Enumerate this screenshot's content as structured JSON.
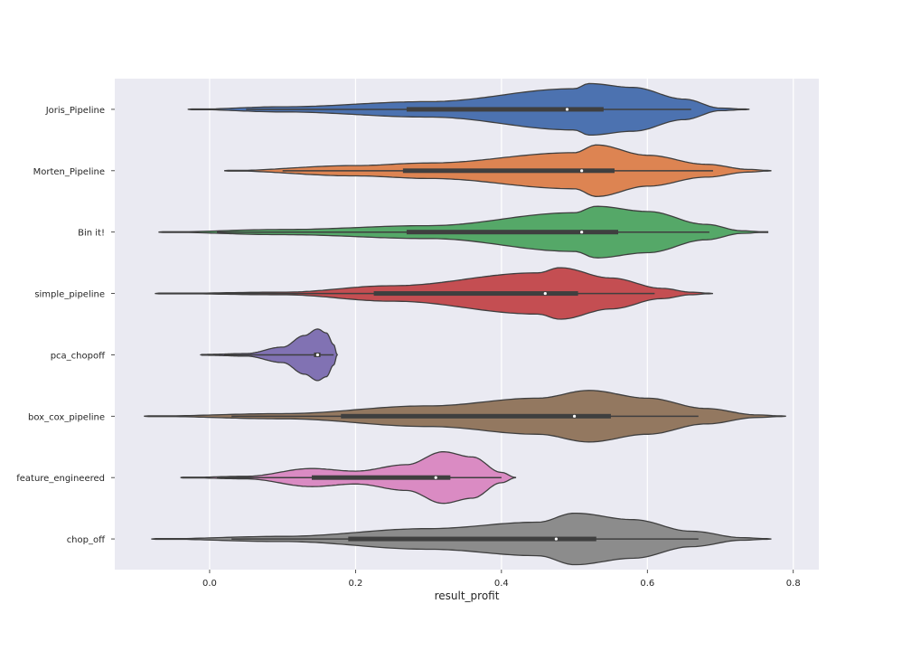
{
  "chart_data": {
    "type": "violin",
    "orientation": "horizontal",
    "title": "",
    "xlabel": "result_profit",
    "ylabel": "",
    "xlim": [
      -0.13,
      0.835
    ],
    "xticks": [
      0.0,
      0.2,
      0.4,
      0.6,
      0.8
    ],
    "xtick_labels": [
      "0.0",
      "0.2",
      "0.4",
      "0.6",
      "0.8"
    ],
    "grid": true,
    "background": "#eaeaf2",
    "categories": [
      "Joris_Pipeline",
      "Morten_Pipeline",
      "Bin it!",
      "simple_pipeline",
      "pca_chopoff",
      "box_cox_pipeline",
      "feature_engineered",
      "chop_off"
    ],
    "series": [
      {
        "category": "Joris_Pipeline",
        "color": "#4c72b0",
        "range": [
          -0.03,
          0.74
        ],
        "whisker": [
          0.05,
          0.66
        ],
        "q1": 0.27,
        "median": 0.49,
        "q3": 0.54,
        "shape": [
          [
            0.1,
            0.1
          ],
          [
            0.3,
            0.3
          ],
          [
            0.5,
            0.8
          ],
          [
            0.52,
            1.0
          ],
          [
            0.58,
            0.85
          ],
          [
            0.65,
            0.4
          ],
          [
            0.7,
            0.05
          ]
        ]
      },
      {
        "category": "Morten_Pipeline",
        "color": "#dd8452",
        "range": [
          0.02,
          0.77
        ],
        "whisker": [
          0.1,
          0.69
        ],
        "q1": 0.265,
        "median": 0.51,
        "q3": 0.555,
        "shape": [
          [
            0.2,
            0.2
          ],
          [
            0.3,
            0.3
          ],
          [
            0.5,
            0.7
          ],
          [
            0.53,
            1.0
          ],
          [
            0.6,
            0.6
          ],
          [
            0.68,
            0.25
          ],
          [
            0.74,
            0.05
          ]
        ]
      },
      {
        "category": "Bin it!",
        "color": "#55a868",
        "range": [
          -0.07,
          0.765
        ],
        "whisker": [
          0.01,
          0.685
        ],
        "q1": 0.27,
        "median": 0.51,
        "q3": 0.56,
        "shape": [
          [
            0.1,
            0.1
          ],
          [
            0.3,
            0.25
          ],
          [
            0.5,
            0.75
          ],
          [
            0.53,
            1.0
          ],
          [
            0.6,
            0.8
          ],
          [
            0.68,
            0.3
          ],
          [
            0.73,
            0.05
          ]
        ]
      },
      {
        "category": "simple_pipeline",
        "color": "#c44e52",
        "range": [
          -0.075,
          0.69
        ],
        "whisker": [
          0.0,
          0.61
        ],
        "q1": 0.225,
        "median": 0.46,
        "q3": 0.505,
        "shape": [
          [
            0.1,
            0.05
          ],
          [
            0.25,
            0.3
          ],
          [
            0.45,
            0.8
          ],
          [
            0.48,
            1.0
          ],
          [
            0.55,
            0.6
          ],
          [
            0.62,
            0.2
          ],
          [
            0.66,
            0.05
          ]
        ]
      },
      {
        "category": "pca_chopoff",
        "color": "#8172b3",
        "range": [
          -0.012,
          0.175
        ],
        "whisker": [
          0.02,
          0.17
        ],
        "q1": 0.143,
        "median": 0.148,
        "q3": 0.152,
        "shape": [
          [
            0.0,
            0.02
          ],
          [
            0.05,
            0.05
          ],
          [
            0.1,
            0.3
          ],
          [
            0.13,
            0.75
          ],
          [
            0.148,
            1.0
          ],
          [
            0.16,
            0.85
          ],
          [
            0.17,
            0.4
          ]
        ]
      },
      {
        "category": "box_cox_pipeline",
        "color": "#937860",
        "range": [
          -0.09,
          0.79
        ],
        "whisker": [
          0.03,
          0.67
        ],
        "q1": 0.18,
        "median": 0.5,
        "q3": 0.55,
        "shape": [
          [
            0.1,
            0.1
          ],
          [
            0.3,
            0.4
          ],
          [
            0.45,
            0.7
          ],
          [
            0.52,
            1.0
          ],
          [
            0.6,
            0.7
          ],
          [
            0.68,
            0.3
          ],
          [
            0.75,
            0.05
          ]
        ]
      },
      {
        "category": "feature_engineered",
        "color": "#da8bc3",
        "range": [
          -0.04,
          0.42
        ],
        "whisker": [
          0.01,
          0.4
        ],
        "q1": 0.14,
        "median": 0.31,
        "q3": 0.33,
        "shape": [
          [
            0.05,
            0.05
          ],
          [
            0.14,
            0.35
          ],
          [
            0.2,
            0.25
          ],
          [
            0.27,
            0.5
          ],
          [
            0.32,
            1.0
          ],
          [
            0.36,
            0.8
          ],
          [
            0.4,
            0.2
          ]
        ]
      },
      {
        "category": "chop_off",
        "color": "#8c8c8c",
        "range": [
          -0.08,
          0.77
        ],
        "whisker": [
          0.03,
          0.67
        ],
        "q1": 0.19,
        "median": 0.475,
        "q3": 0.53,
        "shape": [
          [
            0.1,
            0.1
          ],
          [
            0.3,
            0.4
          ],
          [
            0.45,
            0.65
          ],
          [
            0.5,
            1.0
          ],
          [
            0.58,
            0.75
          ],
          [
            0.66,
            0.3
          ],
          [
            0.73,
            0.05
          ]
        ]
      }
    ]
  }
}
